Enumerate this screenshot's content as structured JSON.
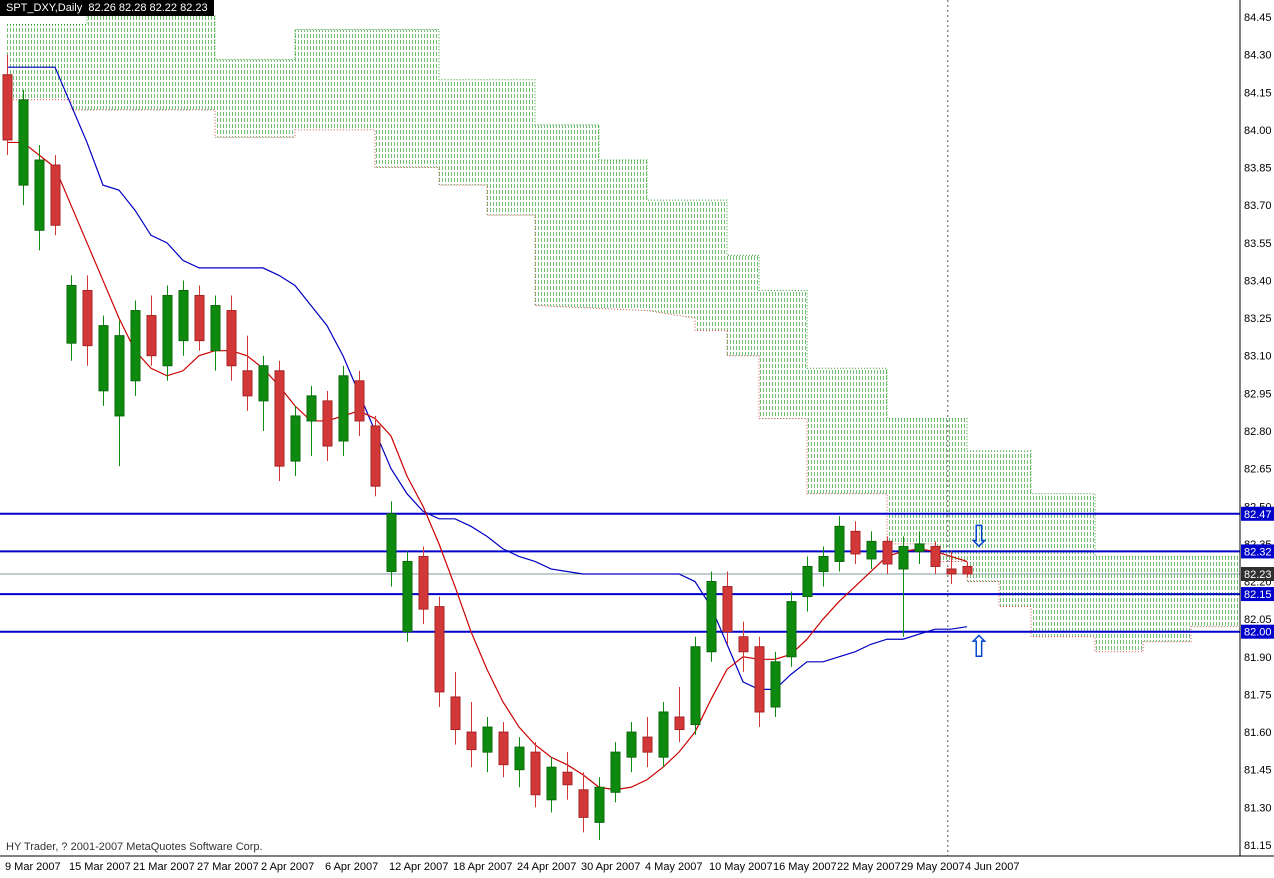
{
  "title_bar": {
    "text": "SPT_DXY,Daily  82.26 82.28 82.22 82.23"
  },
  "footer": {
    "copyright": "HY Trader, ? 2001-2007 MetaQuotes Software Corp."
  },
  "icons": {
    "up_arrow": "⇧",
    "down_arrow": "⇩"
  },
  "colors": {
    "bull": "#0e8a0e",
    "bull_border": "#0a6a0a",
    "bear": "#d23838",
    "bear_border": "#a82424",
    "tenkan": "#cc0000",
    "kijun": "#0000c0",
    "senkou_a": "#cc5050",
    "senkou_b": "#2e9e2e",
    "cloud_fill": "#3aa43a",
    "level": "#0000cd",
    "price_line": "#7d9c9c",
    "tag_current_bg": "#2f2f2f",
    "arrow": "#0044cc"
  },
  "y_axis": {
    "labels": [
      "84.45",
      "84.30",
      "84.15",
      "84.00",
      "83.85",
      "83.70",
      "83.55",
      "83.40",
      "83.25",
      "83.10",
      "82.95",
      "82.80",
      "82.65",
      "82.50",
      "82.35",
      "82.20",
      "82.05",
      "81.90",
      "81.75",
      "81.60",
      "81.45",
      "81.30",
      "81.15"
    ]
  },
  "x_axis": {
    "labels": [
      {
        "text": "9 Mar 2007",
        "index": 0
      },
      {
        "text": "15 Mar 2007",
        "index": 4
      },
      {
        "text": "21 Mar 2007",
        "index": 8
      },
      {
        "text": "27 Mar 2007",
        "index": 12
      },
      {
        "text": "2 Apr 2007",
        "index": 16
      },
      {
        "text": "6 Apr 2007",
        "index": 20
      },
      {
        "text": "12 Apr 2007",
        "index": 24
      },
      {
        "text": "18 Apr 2007",
        "index": 28
      },
      {
        "text": "24 Apr 2007",
        "index": 32
      },
      {
        "text": "30 Apr 2007",
        "index": 36
      },
      {
        "text": "4 May 2007",
        "index": 40
      },
      {
        "text": "10 May 2007",
        "index": 44
      },
      {
        "text": "16 May 2007",
        "index": 48
      },
      {
        "text": "22 May 2007",
        "index": 52
      },
      {
        "text": "29 May 2007",
        "index": 56
      },
      {
        "text": "4 Jun 2007",
        "index": 60
      }
    ]
  },
  "levels": [
    {
      "price": 82.47,
      "tag": "82.47"
    },
    {
      "price": 82.32,
      "tag": "82.32"
    },
    {
      "price": 82.15,
      "tag": "82.15"
    },
    {
      "price": 82.0,
      "tag": "82.00"
    }
  ],
  "current_price": {
    "price": 82.23,
    "tag": "82.23"
  },
  "arrows": [
    {
      "dir": "down",
      "index": 60.75,
      "price": 82.38
    },
    {
      "dir": "up",
      "index": 60.75,
      "price": 81.94
    }
  ],
  "chart_data": {
    "type": "candlestick",
    "symbol": "SPT_DXY",
    "timeframe": "Daily",
    "current_quote": {
      "open": 82.26,
      "high": 82.28,
      "low": 82.22,
      "close": 82.23
    },
    "y_range": [
      81.1,
      84.52
    ],
    "separator_index": 58.8,
    "ohlc": [
      [
        84.22,
        84.3,
        83.9,
        83.96
      ],
      [
        83.78,
        84.16,
        83.7,
        84.12
      ],
      [
        83.6,
        83.94,
        83.52,
        83.88
      ],
      [
        83.86,
        83.9,
        83.58,
        83.62
      ],
      [
        83.15,
        83.42,
        83.08,
        83.38
      ],
      [
        83.36,
        83.42,
        83.06,
        83.14
      ],
      [
        82.96,
        83.26,
        82.9,
        83.22
      ],
      [
        82.86,
        83.24,
        82.66,
        83.18
      ],
      [
        83.0,
        83.32,
        82.94,
        83.28
      ],
      [
        83.26,
        83.34,
        83.06,
        83.1
      ],
      [
        83.06,
        83.38,
        83.0,
        83.34
      ],
      [
        83.16,
        83.4,
        83.1,
        83.36
      ],
      [
        83.34,
        83.38,
        83.12,
        83.16
      ],
      [
        83.12,
        83.34,
        83.04,
        83.3
      ],
      [
        83.28,
        83.34,
        83.0,
        83.06
      ],
      [
        83.04,
        83.18,
        82.88,
        82.94
      ],
      [
        82.92,
        83.1,
        82.8,
        83.06
      ],
      [
        83.04,
        83.08,
        82.6,
        82.66
      ],
      [
        82.68,
        82.9,
        82.62,
        82.86
      ],
      [
        82.84,
        82.98,
        82.7,
        82.94
      ],
      [
        82.92,
        82.96,
        82.68,
        82.74
      ],
      [
        82.76,
        83.06,
        82.7,
        83.02
      ],
      [
        83.0,
        83.04,
        82.78,
        82.84
      ],
      [
        82.82,
        82.86,
        82.54,
        82.58
      ],
      [
        82.24,
        82.52,
        82.18,
        82.47
      ],
      [
        82.0,
        82.32,
        81.96,
        82.28
      ],
      [
        82.3,
        82.34,
        82.03,
        82.09
      ],
      [
        82.1,
        82.14,
        81.7,
        81.76
      ],
      [
        81.74,
        81.84,
        81.55,
        81.61
      ],
      [
        81.6,
        81.72,
        81.46,
        81.53
      ],
      [
        81.52,
        81.66,
        81.44,
        81.62
      ],
      [
        81.6,
        81.64,
        81.42,
        81.47
      ],
      [
        81.45,
        81.58,
        81.38,
        81.54
      ],
      [
        81.52,
        81.56,
        81.3,
        81.35
      ],
      [
        81.33,
        81.5,
        81.28,
        81.46
      ],
      [
        81.44,
        81.52,
        81.33,
        81.39
      ],
      [
        81.37,
        81.44,
        81.2,
        81.26
      ],
      [
        81.24,
        81.42,
        81.17,
        81.38
      ],
      [
        81.36,
        81.56,
        81.32,
        81.52
      ],
      [
        81.5,
        81.64,
        81.44,
        81.6
      ],
      [
        81.58,
        81.66,
        81.46,
        81.52
      ],
      [
        81.5,
        81.72,
        81.46,
        81.68
      ],
      [
        81.66,
        81.78,
        81.56,
        81.61
      ],
      [
        81.63,
        81.98,
        81.59,
        81.94
      ],
      [
        81.92,
        82.24,
        81.88,
        82.2
      ],
      [
        82.18,
        82.24,
        81.95,
        82.0
      ],
      [
        81.98,
        82.04,
        81.84,
        81.92
      ],
      [
        81.94,
        81.98,
        81.62,
        81.68
      ],
      [
        81.7,
        81.92,
        81.66,
        81.88
      ],
      [
        81.9,
        82.16,
        81.86,
        82.12
      ],
      [
        82.14,
        82.3,
        82.08,
        82.26
      ],
      [
        82.24,
        82.34,
        82.18,
        82.3
      ],
      [
        82.28,
        82.46,
        82.24,
        82.42
      ],
      [
        82.4,
        82.44,
        82.27,
        82.31
      ],
      [
        82.29,
        82.4,
        82.25,
        82.36
      ],
      [
        82.36,
        82.38,
        82.23,
        82.27
      ],
      [
        82.25,
        82.38,
        81.98,
        82.34
      ],
      [
        82.32,
        82.4,
        82.27,
        82.35
      ],
      [
        82.34,
        82.36,
        82.23,
        82.26
      ],
      [
        82.25,
        82.32,
        82.19,
        82.23
      ],
      [
        82.26,
        82.28,
        82.22,
        82.23
      ]
    ],
    "indicators": {
      "tenkan_sen": [
        83.95,
        83.95,
        83.9,
        83.85,
        83.7,
        83.55,
        83.4,
        83.25,
        83.12,
        83.05,
        83.02,
        83.04,
        83.1,
        83.12,
        83.12,
        83.1,
        83.05,
        82.98,
        82.9,
        82.84,
        82.84,
        82.86,
        82.88,
        82.85,
        82.78,
        82.62,
        82.5,
        82.35,
        82.18,
        82.0,
        81.85,
        81.72,
        81.62,
        81.55,
        81.5,
        81.47,
        81.43,
        81.38,
        81.37,
        81.38,
        81.41,
        81.46,
        81.52,
        81.6,
        81.73,
        81.85,
        81.9,
        81.89,
        81.89,
        81.91,
        81.97,
        82.05,
        82.12,
        82.18,
        82.24,
        82.3,
        82.32,
        82.33,
        82.32,
        82.3,
        82.28
      ],
      "kijun_sen": [
        84.25,
        84.25,
        84.25,
        84.25,
        84.1,
        83.95,
        83.78,
        83.76,
        83.68,
        83.58,
        83.55,
        83.48,
        83.45,
        83.45,
        83.45,
        83.45,
        83.45,
        83.42,
        83.38,
        83.3,
        83.22,
        83.1,
        82.95,
        82.8,
        82.65,
        82.55,
        82.48,
        82.45,
        82.45,
        82.42,
        82.38,
        82.33,
        82.3,
        82.28,
        82.25,
        82.24,
        82.23,
        82.23,
        82.23,
        82.23,
        82.23,
        82.23,
        82.23,
        82.2,
        82.1,
        81.95,
        81.8,
        81.77,
        81.77,
        81.83,
        81.88,
        81.88,
        81.9,
        81.92,
        81.95,
        81.97,
        81.97,
        81.99,
        82.01,
        82.01,
        82.02
      ],
      "senkou_span_b": [
        [
          0,
          84.42
        ],
        [
          5,
          84.42
        ],
        [
          5,
          84.46
        ],
        [
          13,
          84.46
        ],
        [
          13,
          84.28
        ],
        [
          18,
          84.28
        ],
        [
          18,
          84.4
        ],
        [
          27,
          84.4
        ],
        [
          27,
          84.2
        ],
        [
          33,
          84.2
        ],
        [
          33,
          84.02
        ],
        [
          37,
          84.02
        ],
        [
          37,
          83.88
        ],
        [
          40,
          83.88
        ],
        [
          40,
          83.72
        ],
        [
          45,
          83.72
        ],
        [
          45,
          83.5
        ],
        [
          47,
          83.5
        ],
        [
          47,
          83.36
        ],
        [
          50,
          83.36
        ],
        [
          50,
          83.05
        ],
        [
          55,
          83.05
        ],
        [
          55,
          82.85
        ],
        [
          60,
          82.85
        ],
        [
          60,
          82.72
        ],
        [
          64,
          82.72
        ],
        [
          64,
          82.55
        ],
        [
          68,
          82.55
        ],
        [
          68,
          82.3
        ],
        [
          77,
          82.3
        ]
      ],
      "senkou_span_a": [
        [
          0,
          84.12
        ],
        [
          4,
          84.12
        ],
        [
          4,
          84.08
        ],
        [
          13,
          84.08
        ],
        [
          13,
          83.97
        ],
        [
          18,
          83.97
        ],
        [
          18,
          84.0
        ],
        [
          23,
          84.0
        ],
        [
          23,
          83.85
        ],
        [
          27,
          83.85
        ],
        [
          27,
          83.78
        ],
        [
          30,
          83.78
        ],
        [
          30,
          83.66
        ],
        [
          33,
          83.66
        ],
        [
          33,
          83.3
        ],
        [
          40,
          83.28
        ],
        [
          43,
          83.25
        ],
        [
          43,
          83.2
        ],
        [
          45,
          83.2
        ],
        [
          45,
          83.1
        ],
        [
          47,
          83.1
        ],
        [
          47,
          82.85
        ],
        [
          50,
          82.85
        ],
        [
          50,
          82.55
        ],
        [
          55,
          82.55
        ],
        [
          55,
          82.35
        ],
        [
          58,
          82.35
        ],
        [
          58,
          82.28
        ],
        [
          60,
          82.28
        ],
        [
          60,
          82.2
        ],
        [
          62,
          82.2
        ],
        [
          62,
          82.1
        ],
        [
          64,
          82.1
        ],
        [
          64,
          81.98
        ],
        [
          68,
          81.98
        ],
        [
          68,
          81.92
        ],
        [
          71,
          81.92
        ],
        [
          71,
          81.96
        ],
        [
          74,
          81.96
        ],
        [
          74,
          82.02
        ],
        [
          77,
          82.02
        ]
      ]
    }
  }
}
